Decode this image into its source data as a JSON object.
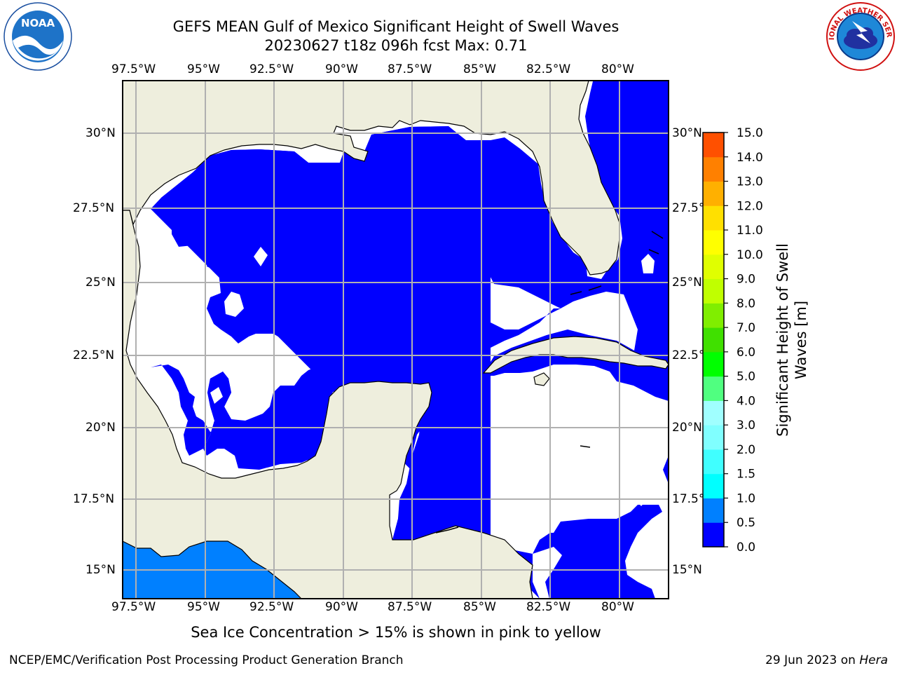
{
  "title": {
    "line1": "GEFS MEAN Gulf of Mexico Significant Height of Swell Waves",
    "line2": "20230627 t18z 096h fcst   Max: 0.71"
  },
  "map": {
    "lon_labels": [
      "97.5°W",
      "95°W",
      "92.5°W",
      "90°W",
      "87.5°W",
      "85°W",
      "82.5°W",
      "80°W"
    ],
    "lat_labels": [
      "30°N",
      "27.5°N",
      "25°N",
      "22.5°N",
      "20°N",
      "17.5°N",
      "15°N"
    ],
    "lat_labels_right": [
      "30°N",
      "27.5°",
      "25°N",
      "22.5°",
      "20°N",
      "17.5°",
      "15°N"
    ],
    "land_color": "#eeeedd",
    "water_color": "#0000ff",
    "gridline_color": "#b0b0b0"
  },
  "colorbar": {
    "label": "Significant Height of Swell Waves [m]",
    "ticks": [
      "0.0",
      "0.5",
      "1.0",
      "1.5",
      "2.0",
      "3.0",
      "4.0",
      "5.0",
      "6.0",
      "7.0",
      "8.0",
      "9.0",
      "10.0",
      "11.0",
      "12.0",
      "13.0",
      "14.0",
      "15.0"
    ],
    "colors": [
      "#0000ff",
      "#0080ff",
      "#00ffff",
      "#40ffff",
      "#80ffff",
      "#a0ffff",
      "#50ff80",
      "#00ff00",
      "#40e000",
      "#80ee00",
      "#c0ff00",
      "#e0ff00",
      "#ffff00",
      "#ffe000",
      "#ffb000",
      "#ff8000",
      "#ff5000",
      "#ff2000",
      "#ff0000"
    ]
  },
  "subtitle": "Sea Ice Concentration > 15% is shown in pink to yellow",
  "footer": {
    "left": "NCEP/EMC/Verification Post Processing Product Generation Branch",
    "right_prefix": "29 Jun 2023 on ",
    "right_italic": "Hera"
  },
  "logos": {
    "noaa_text": "NOAA",
    "nws_text": "NATIONAL WEATHER SERVICE"
  }
}
